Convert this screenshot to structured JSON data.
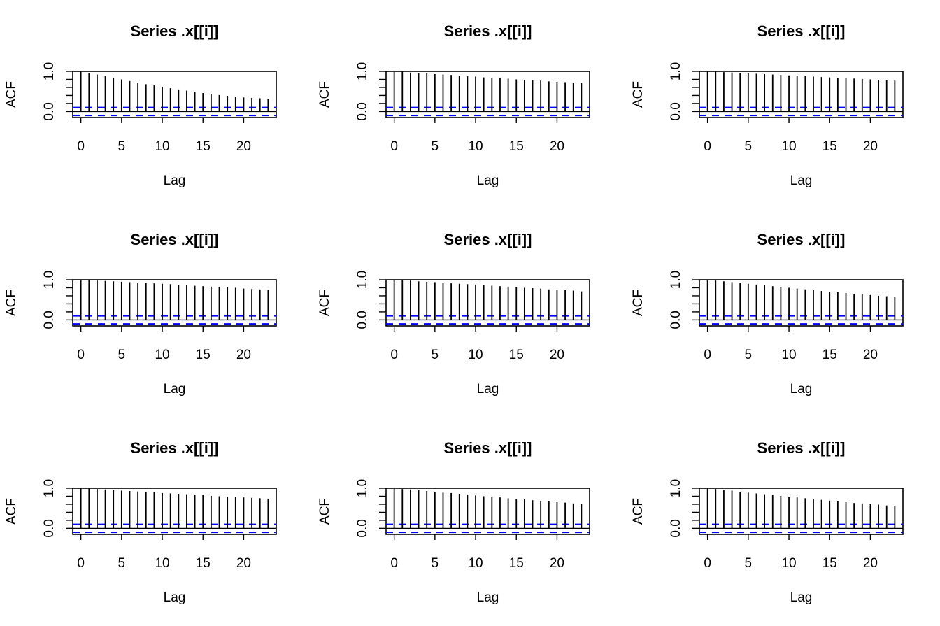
{
  "chart_data": [
    {
      "type": "bar",
      "title": "Series  .x[[i]]",
      "xlabel": "Lag",
      "ylabel": "ACF",
      "xlim": [
        -1,
        24
      ],
      "ylim": [
        -0.15,
        1.0
      ],
      "xticks": [
        "0",
        "5",
        "10",
        "15",
        "20"
      ],
      "yticks": [
        "0.0",
        "1.0"
      ],
      "conf_band": [
        0.1,
        -0.1
      ],
      "lags": [
        0,
        1,
        2,
        3,
        4,
        5,
        6,
        7,
        8,
        9,
        10,
        11,
        12,
        13,
        14,
        15,
        16,
        17,
        18,
        19,
        20,
        21,
        22,
        23
      ],
      "values": [
        1.0,
        0.96,
        0.92,
        0.88,
        0.84,
        0.8,
        0.76,
        0.72,
        0.68,
        0.65,
        0.61,
        0.58,
        0.55,
        0.52,
        0.49,
        0.46,
        0.44,
        0.41,
        0.39,
        0.37,
        0.35,
        0.34,
        0.33,
        0.32
      ]
    },
    {
      "type": "bar",
      "title": "Series  .x[[i]]",
      "xlabel": "Lag",
      "ylabel": "ACF",
      "xlim": [
        -1,
        24
      ],
      "ylim": [
        -0.15,
        1.0
      ],
      "xticks": [
        "0",
        "5",
        "10",
        "15",
        "20"
      ],
      "yticks": [
        "0.0",
        "1.0"
      ],
      "conf_band": [
        0.1,
        -0.1
      ],
      "lags": [
        0,
        1,
        2,
        3,
        4,
        5,
        6,
        7,
        8,
        9,
        10,
        11,
        12,
        13,
        14,
        15,
        16,
        17,
        18,
        19,
        20,
        21,
        22,
        23
      ],
      "values": [
        1.0,
        0.99,
        0.97,
        0.96,
        0.95,
        0.93,
        0.92,
        0.91,
        0.89,
        0.88,
        0.87,
        0.85,
        0.84,
        0.83,
        0.82,
        0.8,
        0.79,
        0.78,
        0.77,
        0.75,
        0.74,
        0.73,
        0.72,
        0.71
      ]
    },
    {
      "type": "bar",
      "title": "Series  .x[[i]]",
      "xlabel": "Lag",
      "ylabel": "ACF",
      "xlim": [
        -1,
        24
      ],
      "ylim": [
        -0.15,
        1.0
      ],
      "xticks": [
        "0",
        "5",
        "10",
        "15",
        "20"
      ],
      "yticks": [
        "0.0",
        "1.0"
      ],
      "conf_band": [
        0.1,
        -0.1
      ],
      "lags": [
        0,
        1,
        2,
        3,
        4,
        5,
        6,
        7,
        8,
        9,
        10,
        11,
        12,
        13,
        14,
        15,
        16,
        17,
        18,
        19,
        20,
        21,
        22,
        23
      ],
      "values": [
        1.0,
        0.99,
        0.98,
        0.97,
        0.96,
        0.95,
        0.94,
        0.93,
        0.92,
        0.91,
        0.9,
        0.89,
        0.88,
        0.87,
        0.86,
        0.85,
        0.84,
        0.83,
        0.82,
        0.81,
        0.8,
        0.79,
        0.78,
        0.77
      ]
    },
    {
      "type": "bar",
      "title": "Series  .x[[i]]",
      "xlabel": "Lag",
      "ylabel": "ACF",
      "xlim": [
        -1,
        24
      ],
      "ylim": [
        -0.15,
        1.0
      ],
      "xticks": [
        "0",
        "5",
        "10",
        "15",
        "20"
      ],
      "yticks": [
        "0.0",
        "1.0"
      ],
      "conf_band": [
        0.1,
        -0.1
      ],
      "lags": [
        0,
        1,
        2,
        3,
        4,
        5,
        6,
        7,
        8,
        9,
        10,
        11,
        12,
        13,
        14,
        15,
        16,
        17,
        18,
        19,
        20,
        21,
        22,
        23
      ],
      "values": [
        1.0,
        0.99,
        0.98,
        0.97,
        0.96,
        0.95,
        0.94,
        0.93,
        0.92,
        0.91,
        0.9,
        0.89,
        0.87,
        0.86,
        0.85,
        0.84,
        0.83,
        0.82,
        0.81,
        0.8,
        0.78,
        0.77,
        0.76,
        0.75
      ]
    },
    {
      "type": "bar",
      "title": "Series  .x[[i]]",
      "xlabel": "Lag",
      "ylabel": "ACF",
      "xlim": [
        -1,
        24
      ],
      "ylim": [
        -0.15,
        1.0
      ],
      "xticks": [
        "0",
        "5",
        "10",
        "15",
        "20"
      ],
      "yticks": [
        "0.0",
        "1.0"
      ],
      "conf_band": [
        0.1,
        -0.1
      ],
      "lags": [
        0,
        1,
        2,
        3,
        4,
        5,
        6,
        7,
        8,
        9,
        10,
        11,
        12,
        13,
        14,
        15,
        16,
        17,
        18,
        19,
        20,
        21,
        22,
        23
      ],
      "values": [
        1.0,
        0.99,
        0.98,
        0.96,
        0.95,
        0.94,
        0.93,
        0.91,
        0.9,
        0.89,
        0.88,
        0.86,
        0.85,
        0.84,
        0.83,
        0.81,
        0.8,
        0.79,
        0.78,
        0.76,
        0.75,
        0.74,
        0.73,
        0.71
      ]
    },
    {
      "type": "bar",
      "title": "Series  .x[[i]]",
      "xlabel": "Lag",
      "ylabel": "ACF",
      "xlim": [
        -1,
        24
      ],
      "ylim": [
        -0.15,
        1.0
      ],
      "xticks": [
        "0",
        "5",
        "10",
        "15",
        "20"
      ],
      "yticks": [
        "0.0",
        "1.0"
      ],
      "conf_band": [
        0.1,
        -0.1
      ],
      "lags": [
        0,
        1,
        2,
        3,
        4,
        5,
        6,
        7,
        8,
        9,
        10,
        11,
        12,
        13,
        14,
        15,
        16,
        17,
        18,
        19,
        20,
        21,
        22,
        23
      ],
      "values": [
        1.0,
        0.98,
        0.96,
        0.94,
        0.92,
        0.9,
        0.88,
        0.86,
        0.84,
        0.82,
        0.8,
        0.78,
        0.76,
        0.74,
        0.72,
        0.7,
        0.69,
        0.67,
        0.65,
        0.64,
        0.62,
        0.6,
        0.59,
        0.57
      ]
    },
    {
      "type": "bar",
      "title": "Series  .x[[i]]",
      "xlabel": "Lag",
      "ylabel": "ACF",
      "xlim": [
        -1,
        24
      ],
      "ylim": [
        -0.15,
        1.0
      ],
      "xticks": [
        "0",
        "5",
        "10",
        "15",
        "20"
      ],
      "yticks": [
        "0.0",
        "1.0"
      ],
      "conf_band": [
        0.1,
        -0.1
      ],
      "lags": [
        0,
        1,
        2,
        3,
        4,
        5,
        6,
        7,
        8,
        9,
        10,
        11,
        12,
        13,
        14,
        15,
        16,
        17,
        18,
        19,
        20,
        21,
        22,
        23
      ],
      "values": [
        1.0,
        0.99,
        0.98,
        0.97,
        0.95,
        0.94,
        0.93,
        0.92,
        0.91,
        0.9,
        0.88,
        0.87,
        0.86,
        0.85,
        0.84,
        0.83,
        0.81,
        0.8,
        0.79,
        0.78,
        0.77,
        0.76,
        0.75,
        0.74
      ]
    },
    {
      "type": "bar",
      "title": "Series  .x[[i]]",
      "xlabel": "Lag",
      "ylabel": "ACF",
      "xlim": [
        -1,
        24
      ],
      "ylim": [
        -0.15,
        1.0
      ],
      "xticks": [
        "0",
        "5",
        "10",
        "15",
        "20"
      ],
      "yticks": [
        "0.0",
        "1.0"
      ],
      "conf_band": [
        0.1,
        -0.1
      ],
      "lags": [
        0,
        1,
        2,
        3,
        4,
        5,
        6,
        7,
        8,
        9,
        10,
        11,
        12,
        13,
        14,
        15,
        16,
        17,
        18,
        19,
        20,
        21,
        22,
        23
      ],
      "values": [
        1.0,
        0.98,
        0.97,
        0.95,
        0.93,
        0.91,
        0.89,
        0.88,
        0.86,
        0.84,
        0.82,
        0.8,
        0.79,
        0.77,
        0.75,
        0.73,
        0.72,
        0.7,
        0.68,
        0.67,
        0.65,
        0.64,
        0.62,
        0.61
      ]
    },
    {
      "type": "bar",
      "title": "Series  .x[[i]]",
      "xlabel": "Lag",
      "ylabel": "ACF",
      "xlim": [
        -1,
        24
      ],
      "ylim": [
        -0.15,
        1.0
      ],
      "xticks": [
        "0",
        "5",
        "10",
        "15",
        "20"
      ],
      "yticks": [
        "0.0",
        "1.0"
      ],
      "conf_band": [
        0.1,
        -0.1
      ],
      "lags": [
        0,
        1,
        2,
        3,
        4,
        5,
        6,
        7,
        8,
        9,
        10,
        11,
        12,
        13,
        14,
        15,
        16,
        17,
        18,
        19,
        20,
        21,
        22,
        23
      ],
      "values": [
        1.0,
        0.98,
        0.96,
        0.94,
        0.91,
        0.89,
        0.87,
        0.85,
        0.83,
        0.81,
        0.79,
        0.77,
        0.75,
        0.73,
        0.71,
        0.69,
        0.67,
        0.65,
        0.63,
        0.62,
        0.6,
        0.59,
        0.57,
        0.56
      ]
    }
  ],
  "colors": {
    "bars": "#000000",
    "conf_band": "#0000ff",
    "axis": "#000000"
  }
}
